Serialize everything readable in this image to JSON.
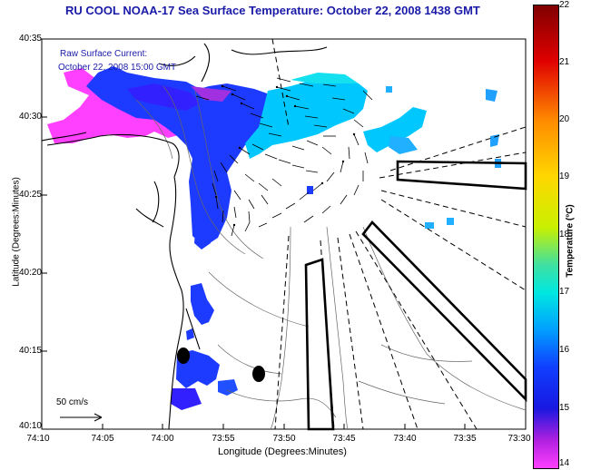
{
  "title": "RU COOL  NOAA-17  Sea Surface Temperature:  October 22, 2008 1438 GMT",
  "overlay": {
    "current_label": "Raw Surface Current:",
    "current_time": "October 22, 2008 15:00 GMT",
    "scale_label": "50 cm/s"
  },
  "axes": {
    "xlabel": "Longitude (Degrees:Minutes)",
    "ylabel": "Latitude (Degrees:Minutes)",
    "xticks": [
      "74:10",
      "74:05",
      "74:00",
      "73:55",
      "73:50",
      "73:45",
      "73:40",
      "73:35",
      "73:30"
    ],
    "yticks": [
      "40:35",
      "40:30",
      "40:25",
      "40:20",
      "40:15",
      "40:10"
    ]
  },
  "colorbar": {
    "title": "Temperature (°C)",
    "min": 14,
    "max": 22,
    "ticks": [
      "22",
      "21",
      "20",
      "19",
      "18",
      "17",
      "16",
      "15",
      "14"
    ]
  },
  "colors": {
    "title": "#1a1aa8",
    "land": "#ffffff",
    "coast": "#000000"
  }
}
